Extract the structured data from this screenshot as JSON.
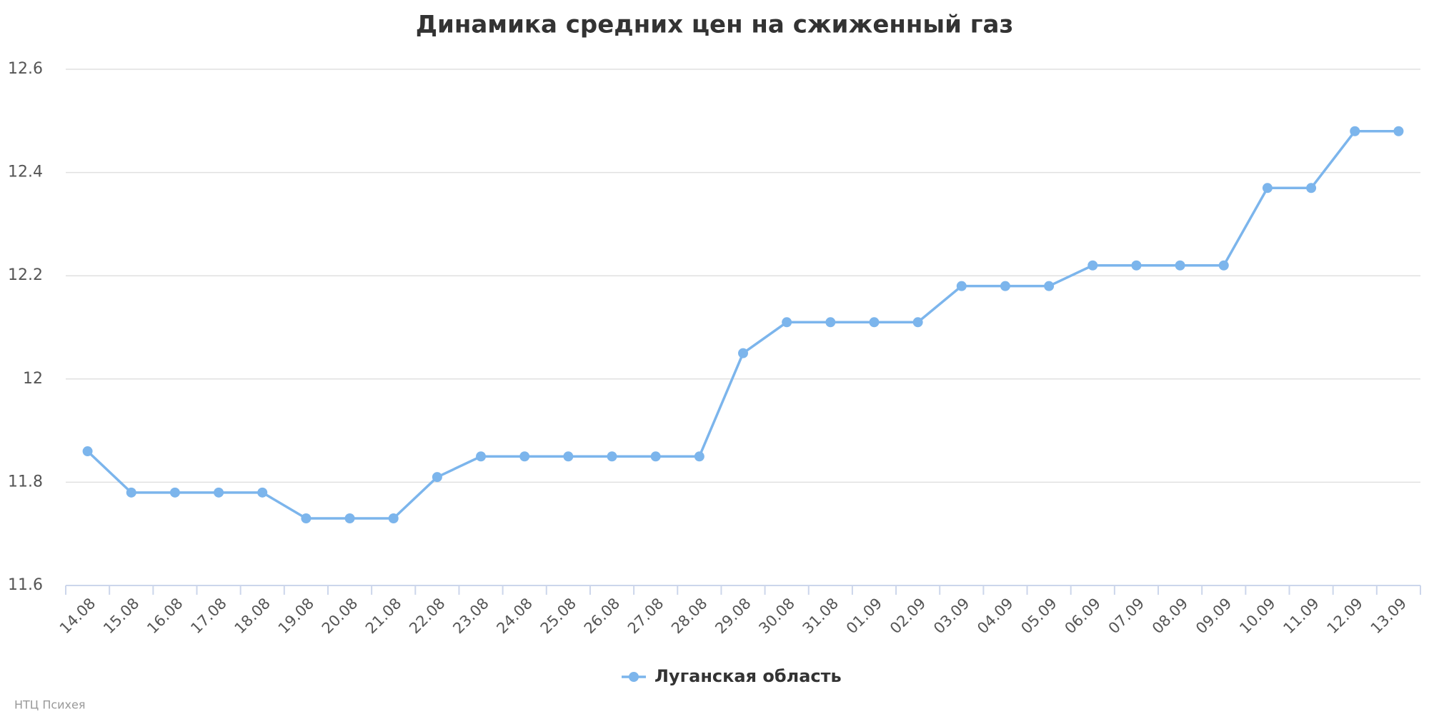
{
  "chart_data": {
    "type": "line",
    "title": "Динамика средних цен на сжиженный газ",
    "categories": [
      "14.08",
      "15.08",
      "16.08",
      "17.08",
      "18.08",
      "19.08",
      "20.08",
      "21.08",
      "22.08",
      "23.08",
      "24.08",
      "25.08",
      "26.08",
      "27.08",
      "28.08",
      "29.08",
      "30.08",
      "31.08",
      "01.09",
      "02.09",
      "03.09",
      "04.09",
      "05.09",
      "06.09",
      "07.09",
      "08.09",
      "09.09",
      "10.09",
      "11.09",
      "12.09",
      "13.09"
    ],
    "series": [
      {
        "name": "Луганская область",
        "color": "#7cb5ec",
        "values": [
          11.86,
          11.78,
          11.78,
          11.78,
          11.78,
          11.73,
          11.73,
          11.73,
          11.81,
          11.85,
          11.85,
          11.85,
          11.85,
          11.85,
          11.85,
          12.05,
          12.11,
          12.11,
          12.11,
          12.11,
          12.18,
          12.18,
          12.18,
          12.22,
          12.22,
          12.22,
          12.22,
          12.37,
          12.37,
          12.48,
          12.48
        ]
      }
    ],
    "ylim": [
      11.6,
      12.6
    ],
    "yticks": [
      11.6,
      11.8,
      12,
      12.2,
      12.4,
      12.6
    ],
    "grid": true,
    "credit": "НТЦ Психея"
  }
}
